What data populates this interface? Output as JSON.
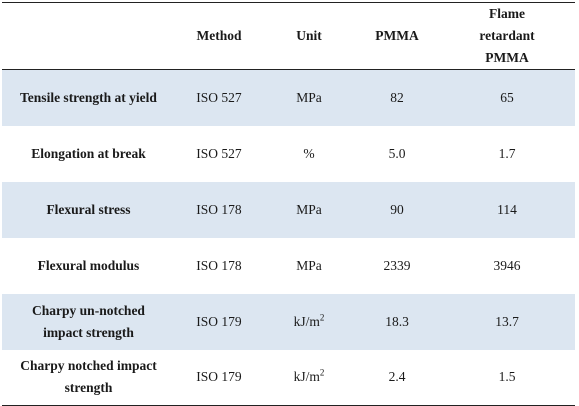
{
  "table": {
    "headers": [
      "",
      "Method",
      "Unit",
      "PMMA",
      "Flame retardant PMMA"
    ],
    "rows": [
      {
        "parameter": "Tensile strength at yield",
        "method": "ISO 527",
        "unit": "MPa",
        "unit_sup": "",
        "pmma": "82",
        "fr_pmma": "65"
      },
      {
        "parameter": "Elongation at break",
        "method": "ISO 527",
        "unit": "%",
        "unit_sup": "",
        "pmma": "5.0",
        "fr_pmma": "1.7"
      },
      {
        "parameter": "Flexural stress",
        "method": "ISO 178",
        "unit": "MPa",
        "unit_sup": "",
        "pmma": "90",
        "fr_pmma": "114"
      },
      {
        "parameter": "Flexural modulus",
        "method": "ISO 178",
        "unit": "MPa",
        "unit_sup": "",
        "pmma": "2339",
        "fr_pmma": "3946"
      },
      {
        "parameter": "Charpy un-notched impact strength",
        "method": "ISO 179",
        "unit": "kJ/m",
        "unit_sup": "2",
        "pmma": "18.3",
        "fr_pmma": "13.7"
      },
      {
        "parameter": "Charpy notched impact strength",
        "method": "ISO 179",
        "unit": "kJ/m",
        "unit_sup": "2",
        "pmma": "2.4",
        "fr_pmma": "1.5"
      }
    ]
  },
  "colors": {
    "row_shade": "#dce6f1",
    "rule": "#222222"
  }
}
